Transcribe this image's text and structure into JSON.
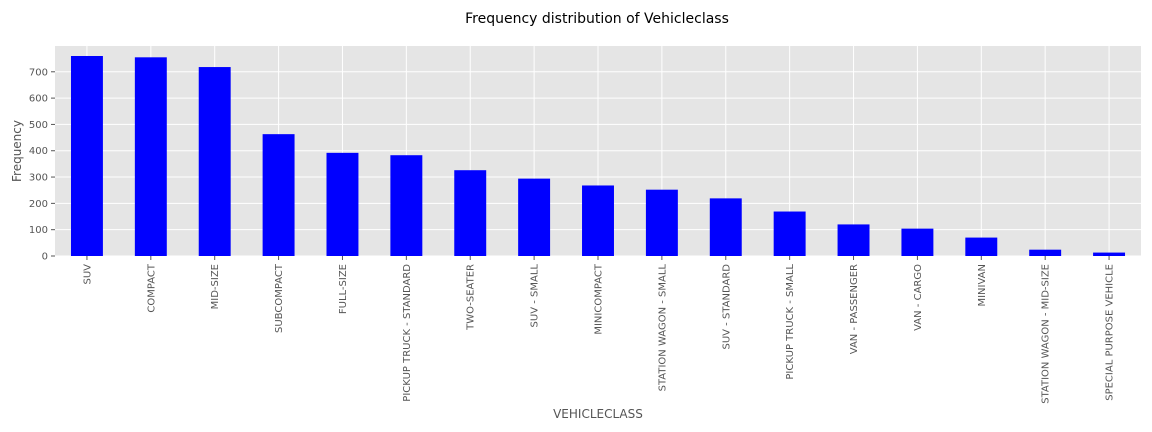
{
  "chart_data": {
    "type": "bar",
    "title": "Frequency distribution of Vehicleclass",
    "xlabel": "VEHICLECLASS",
    "ylabel": "Frequency",
    "categories": [
      "SUV",
      "COMPACT",
      "MID-SIZE",
      "SUBCOMPACT",
      "FULL-SIZE",
      "PICKUP TRUCK - STANDARD",
      "TWO-SEATER",
      "SUV - SMALL",
      "MINICOMPACT",
      "STATION WAGON - SMALL",
      "SUV - STANDARD",
      "PICKUP TRUCK - SMALL",
      "VAN - PASSENGER",
      "VAN - CARGO",
      "MINIVAN",
      "STATION WAGON - MID-SIZE",
      "SPECIAL PURPOSE VEHICLE"
    ],
    "values": [
      760,
      755,
      718,
      463,
      392,
      383,
      326,
      294,
      268,
      252,
      219,
      169,
      120,
      104,
      70,
      24,
      13
    ],
    "yticks": [
      0,
      100,
      200,
      300,
      400,
      500,
      600,
      700
    ],
    "ylim": [
      0,
      798
    ],
    "bar_color": "#0000ff",
    "background_color": "#e5e5e5",
    "grid": true,
    "legend": false
  }
}
